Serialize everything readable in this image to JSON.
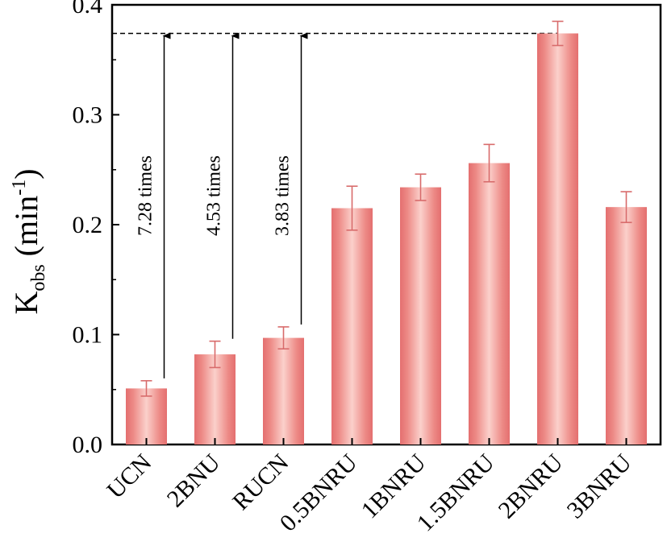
{
  "chart_data": {
    "type": "bar",
    "categories": [
      "UCN",
      "2BNU",
      "RUCN",
      "0.5BNRU",
      "1BNRU",
      "1.5BNRU",
      "2BNRU",
      "3BNRU"
    ],
    "values": [
      0.051,
      0.082,
      0.097,
      0.215,
      0.234,
      0.256,
      0.374,
      0.216
    ],
    "errors": [
      0.007,
      0.012,
      0.01,
      0.02,
      0.012,
      0.017,
      0.011,
      0.014
    ],
    "ylabel": {
      "main": "K",
      "subscript": "obs",
      "unit_prefix": " (min",
      "superscript": "-1",
      "unit_suffix": ")"
    },
    "xlabel": "",
    "ylim": [
      0.0,
      0.4
    ],
    "yticks": [
      "0.0",
      "0.1",
      "0.2",
      "0.3",
      "0.4"
    ],
    "ytick_values": [
      0.0,
      0.1,
      0.2,
      0.3,
      0.4
    ],
    "grid": false,
    "reference_line": 0.374,
    "annotations": [
      {
        "category": "UCN",
        "text": "7.28 times"
      },
      {
        "category": "2BNU",
        "text": "4.53 times"
      },
      {
        "category": "RUCN",
        "text": "3.83 times"
      }
    ],
    "colors": {
      "bar_edge": "#e46f6f",
      "bar_center": "#fbd0cb",
      "bar_side": "#ed8a86",
      "error_bar": "#d86b6b",
      "axis": "#000000",
      "text": "#000000"
    }
  }
}
